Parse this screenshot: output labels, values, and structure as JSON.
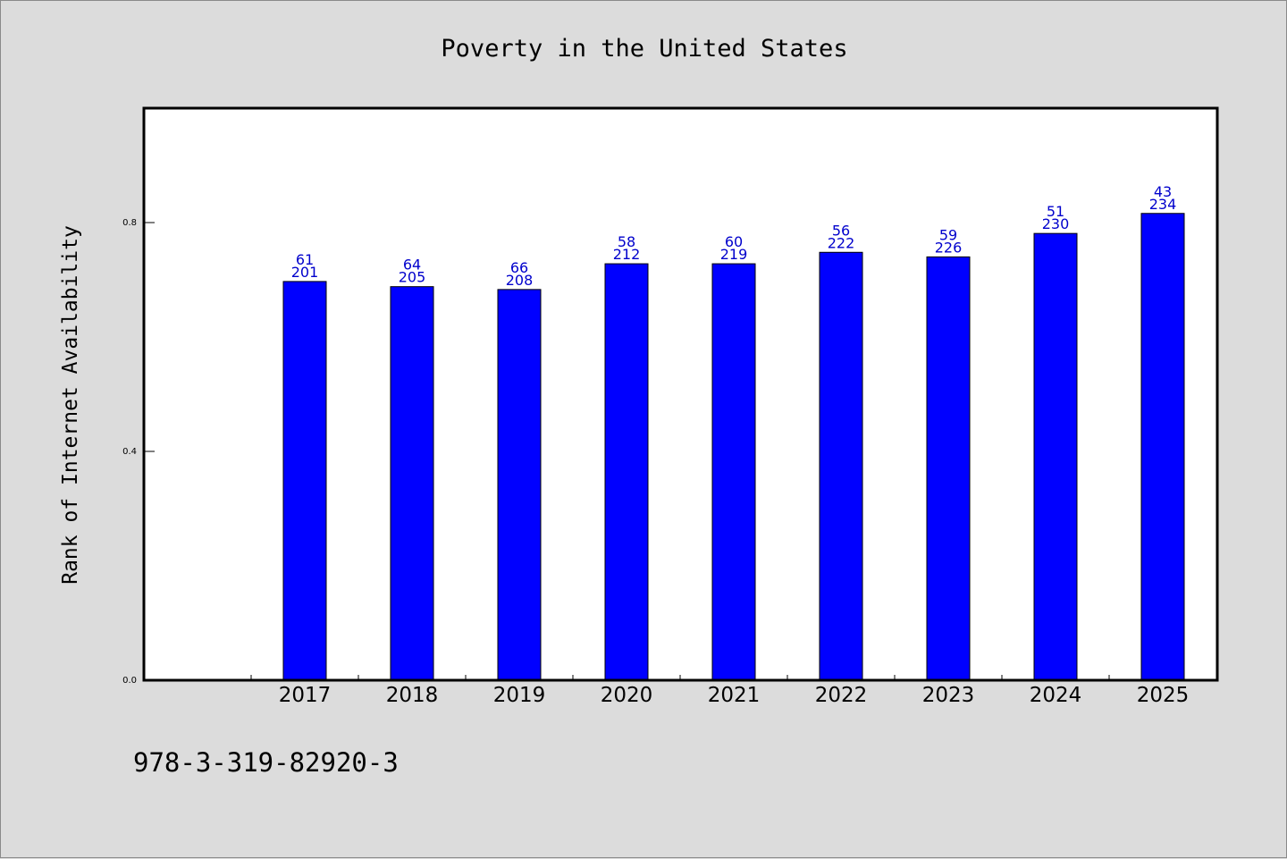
{
  "chart_data": {
    "type": "bar",
    "title": "Poverty in the United States",
    "ylabel": "Rank of Internet Availability",
    "xlabel": "",
    "categories": [
      "2017",
      "2018",
      "2019",
      "2020",
      "2021",
      "2022",
      "2023",
      "2024",
      "2025"
    ],
    "values": [
      0.697,
      0.688,
      0.683,
      0.728,
      0.728,
      0.748,
      0.74,
      0.781,
      0.816
    ],
    "data_labels_top": [
      "61",
      "64",
      "66",
      "58",
      "60",
      "56",
      "59",
      "51",
      "43"
    ],
    "data_labels_bottom": [
      "201",
      "205",
      "208",
      "212",
      "219",
      "222",
      "226",
      "230",
      "234"
    ],
    "ylim": [
      0,
      1.0
    ],
    "yticks": [
      "0.0",
      "0.4",
      "0.8"
    ],
    "ytick_values": [
      0.0,
      0.4,
      0.8
    ],
    "bar_color": "#0000ff",
    "label_color": "#0000cc",
    "grid": false,
    "legend": "none"
  },
  "footer": {
    "isbn": "978-3-319-82920-3"
  }
}
